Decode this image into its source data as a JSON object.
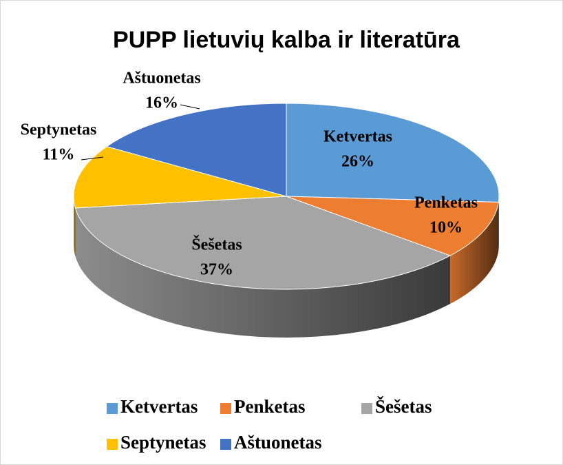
{
  "chart_data": {
    "type": "pie",
    "title": "PUPP lietuvių kalba ir literatūra",
    "categories": [
      "Ketvertas",
      "Penketas",
      "Šešetas",
      "Septynetas",
      "Aštuonetas"
    ],
    "values": [
      26,
      10,
      37,
      11,
      16
    ],
    "value_labels": [
      "26%",
      "10%",
      "37%",
      "11%",
      "16%"
    ],
    "colors": [
      "#5b9bd5",
      "#ed7d31",
      "#a5a5a5",
      "#ffc000",
      "#4472c4"
    ],
    "legend": "bottom"
  }
}
